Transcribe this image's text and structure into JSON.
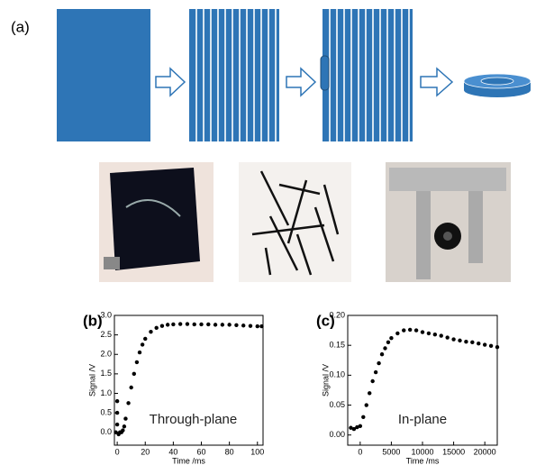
{
  "panel_a_label": "(a)",
  "chart_data": [
    {
      "type": "scatter",
      "panel_label": "(b)",
      "annotation": "Through-plane",
      "x_label": "Time /ms",
      "y_label": "Signal /V",
      "color": "#000000",
      "xlim": [
        -2,
        104
      ],
      "ylim": [
        -0.33,
        3.0
      ],
      "xticks": [
        0,
        20,
        40,
        60,
        80,
        100
      ],
      "yticks": [
        {
          "value": 0,
          "label": "0.0"
        },
        0.5,
        {
          "value": 1,
          "label": "1.0"
        },
        1.5,
        {
          "value": 2,
          "label": "2.0"
        },
        2.5,
        {
          "value": 3,
          "label": "3.0"
        }
      ],
      "x": [
        -1,
        0,
        0,
        0,
        1,
        2,
        3,
        4,
        5,
        6,
        8,
        10,
        12,
        14,
        16,
        18,
        20,
        24,
        28,
        32,
        36,
        40,
        45,
        50,
        55,
        60,
        65,
        70,
        75,
        80,
        85,
        90,
        95,
        100,
        103
      ],
      "values": [
        0.0,
        0.8,
        0.5,
        0.2,
        -0.05,
        0.0,
        0.0,
        0.05,
        0.15,
        0.35,
        0.75,
        1.15,
        1.5,
        1.8,
        2.05,
        2.25,
        2.4,
        2.58,
        2.68,
        2.73,
        2.76,
        2.77,
        2.78,
        2.78,
        2.77,
        2.77,
        2.77,
        2.76,
        2.76,
        2.76,
        2.75,
        2.74,
        2.73,
        2.72,
        2.72
      ]
    },
    {
      "type": "scatter",
      "panel_label": "(c)",
      "annotation": "In-plane",
      "x_label": "Time /ms",
      "y_label": "Signal /V",
      "color": "#000000",
      "xlim": [
        -2000,
        22000
      ],
      "ylim": [
        -0.017,
        0.2
      ],
      "xticks": [
        0,
        5000,
        10000,
        15000,
        20000
      ],
      "yticks": [
        {
          "value": 0,
          "label": "0.00"
        },
        0.05,
        {
          "value": 0.1,
          "label": "0.10"
        },
        0.15,
        {
          "value": 0.2,
          "label": "0.20"
        }
      ],
      "x": [
        -1500,
        -1000,
        -500,
        0,
        500,
        1000,
        1500,
        2000,
        2500,
        3000,
        3500,
        4000,
        4500,
        5000,
        6000,
        7000,
        8000,
        9000,
        10000,
        11000,
        12000,
        13000,
        14000,
        15000,
        16000,
        17000,
        18000,
        19000,
        20000,
        21000,
        22000
      ],
      "values": [
        0.012,
        0.01,
        0.013,
        0.015,
        0.03,
        0.05,
        0.07,
        0.09,
        0.105,
        0.12,
        0.135,
        0.145,
        0.155,
        0.162,
        0.17,
        0.175,
        0.176,
        0.175,
        0.172,
        0.17,
        0.168,
        0.166,
        0.163,
        0.16,
        0.158,
        0.156,
        0.155,
        0.153,
        0.151,
        0.149,
        0.147
      ]
    }
  ]
}
